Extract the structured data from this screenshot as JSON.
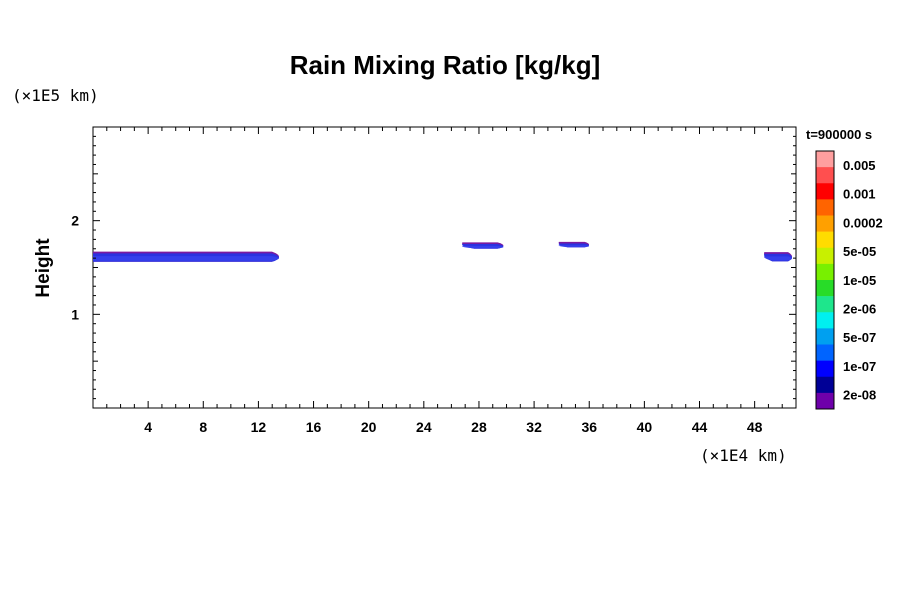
{
  "chart_data": {
    "type": "contour",
    "title": "Rain Mixing Ratio [kg/kg]",
    "ylabel": "Height",
    "x_unit_label": "(×1E4 km)",
    "y_unit_label": "(×1E5 km)",
    "timestamp": "t=900000 s",
    "xlim": [
      0,
      51
    ],
    "ylim": [
      0,
      3
    ],
    "x_ticks": [
      "4",
      "8",
      "12",
      "16",
      "20",
      "24",
      "28",
      "32",
      "36",
      "40",
      "44",
      "48"
    ],
    "x_tick_values": [
      4,
      8,
      12,
      16,
      20,
      24,
      28,
      32,
      36,
      40,
      44,
      48
    ],
    "y_ticks": [
      "1",
      "2"
    ],
    "y_tick_values": [
      1,
      2
    ],
    "colorbar": {
      "colors": [
        "#ff9f9f",
        "#ff4f4f",
        "#ff0000",
        "#ff6400",
        "#ffa000",
        "#ffdc00",
        "#c8f000",
        "#78f000",
        "#28dc28",
        "#1ee68c",
        "#00f0f0",
        "#00a0f0",
        "#0064ff",
        "#0000ff",
        "#000096",
        "#6e00aa"
      ],
      "labels": [
        "0.005",
        "0.001",
        "0.0002",
        "5e-05",
        "1e-05",
        "2e-06",
        "5e-07",
        "1e-07",
        "2e-08"
      ]
    },
    "features": [
      {
        "name": "rain-band-left",
        "x": [
          0,
          14
        ],
        "y_center": 1.61,
        "thickness": 0.09
      },
      {
        "name": "rain-patch-29",
        "x": [
          26.8,
          30.2
        ],
        "y_center": 1.73,
        "thickness": 0.05
      },
      {
        "name": "rain-patch-35",
        "x": [
          33.8,
          36.3
        ],
        "y_center": 1.74,
        "thickness": 0.04
      },
      {
        "name": "rain-band-right",
        "x": [
          48.7,
          51
        ],
        "y_center": 1.61,
        "thickness": 0.08
      }
    ]
  }
}
